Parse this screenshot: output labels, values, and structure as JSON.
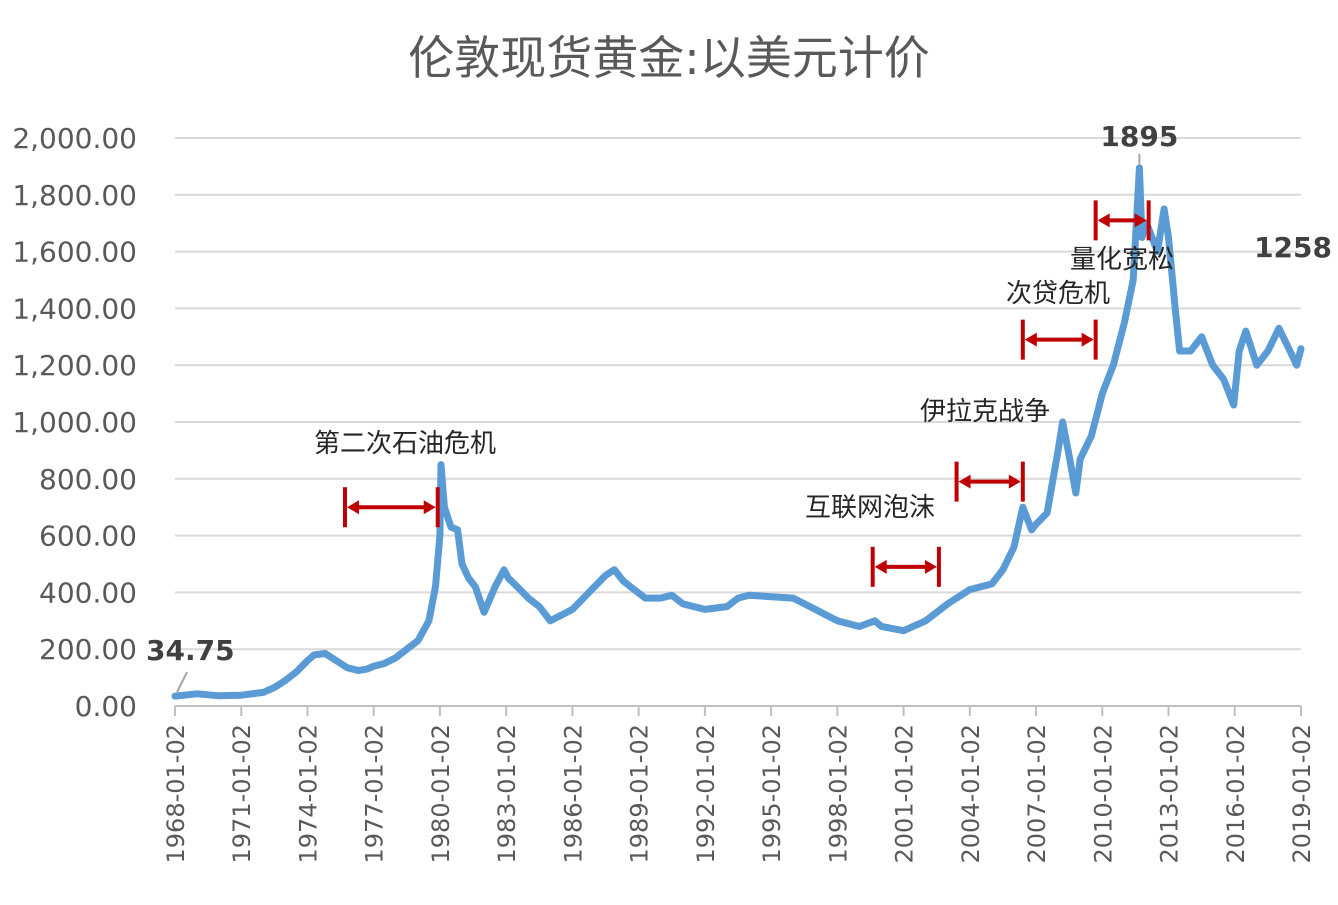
{
  "chart_data": {
    "type": "line",
    "title": "伦敦现货黄金:以美元计价",
    "xlabel": "",
    "ylabel": "",
    "ylim": [
      0,
      2000
    ],
    "grid": true,
    "legend": "none",
    "y_ticks": [
      "0.00",
      "200.00",
      "400.00",
      "600.00",
      "800.00",
      "1,000.00",
      "1,200.00",
      "1,400.00",
      "1,600.00",
      "1,800.00",
      "2,000.00"
    ],
    "x_ticks": [
      "1968-01-02",
      "1971-01-02",
      "1974-01-02",
      "1977-01-02",
      "1980-01-02",
      "1983-01-02",
      "1986-01-02",
      "1989-01-02",
      "1992-01-02",
      "1995-01-02",
      "1998-01-02",
      "2001-01-02",
      "2004-01-02",
      "2007-01-02",
      "2010-01-02",
      "2013-01-02",
      "2016-01-02",
      "2019-01-02"
    ],
    "line_color": "#5B9BD5",
    "arrow_color": "#C00000",
    "series": [
      {
        "x": [
          1968.0,
          1969.0,
          1970.0,
          1971.0,
          1972.0,
          1972.5,
          1973.0,
          1973.5,
          1974.0,
          1974.3,
          1974.8,
          1975.3,
          1975.8,
          1976.3,
          1976.7,
          1977.0,
          1977.5,
          1978.0,
          1978.5,
          1979.0,
          1979.5,
          1979.8,
          1980.0,
          1980.05,
          1980.2,
          1980.5,
          1980.8,
          1981.0,
          1981.3,
          1981.6,
          1982.0,
          1982.5,
          1982.9,
          1983.1,
          1983.5,
          1984.0,
          1984.5,
          1985.0,
          1985.5,
          1986.0,
          1986.5,
          1987.0,
          1987.5,
          1987.9,
          1988.3,
          1988.8,
          1989.3,
          1990.0,
          1990.5,
          1991.0,
          1992.0,
          1993.0,
          1993.5,
          1994.0,
          1995.0,
          1996.0,
          1997.0,
          1997.5,
          1998.0,
          1999.0,
          1999.7,
          2000.0,
          2001.0,
          2002.0,
          2003.0,
          2004.0,
          2005.0,
          2005.5,
          2006.0,
          2006.4,
          2006.8,
          2007.0,
          2007.5,
          2008.0,
          2008.2,
          2008.5,
          2008.8,
          2009.0,
          2009.5,
          2010.0,
          2010.5,
          2011.0,
          2011.4,
          2011.68,
          2011.8,
          2012.0,
          2012.5,
          2012.8,
          2013.0,
          2013.3,
          2013.5,
          2014.0,
          2014.5,
          2015.0,
          2015.5,
          2015.95,
          2016.2,
          2016.5,
          2017.0,
          2017.5,
          2018.0,
          2018.5,
          2018.8,
          2019.0
        ],
        "y": [
          34.75,
          43,
          36,
          38,
          48,
          65,
          90,
          120,
          160,
          180,
          185,
          160,
          135,
          125,
          130,
          140,
          150,
          170,
          200,
          230,
          300,
          420,
          600,
          850,
          700,
          630,
          620,
          500,
          450,
          420,
          330,
          420,
          480,
          450,
          420,
          380,
          350,
          300,
          320,
          340,
          380,
          420,
          460,
          480,
          440,
          410,
          380,
          380,
          390,
          360,
          340,
          350,
          380,
          390,
          385,
          380,
          340,
          320,
          300,
          280,
          300,
          280,
          265,
          300,
          360,
          410,
          430,
          480,
          560,
          700,
          620,
          640,
          680,
          900,
          1000,
          880,
          750,
          870,
          950,
          1100,
          1200,
          1350,
          1500,
          1895,
          1650,
          1700,
          1600,
          1750,
          1650,
          1400,
          1250,
          1250,
          1300,
          1200,
          1150,
          1060,
          1250,
          1320,
          1200,
          1250,
          1330,
          1250,
          1200,
          1258
        ]
      }
    ],
    "annotations": {
      "start_value": "34.75",
      "peak_value": "1895",
      "end_value": "1258",
      "events": [
        {
          "label": "第二次石油危机",
          "from": 1975.7,
          "to": 1979.9,
          "level": 700
        },
        {
          "label": "互联网泡沫",
          "from": 1999.6,
          "to": 2002.6,
          "level": 490
        },
        {
          "label": "伊拉克战争",
          "from": 2003.4,
          "to": 2006.4,
          "level": 790
        },
        {
          "label": "次贷危机",
          "from": 2006.4,
          "to": 2009.7,
          "level": 1290
        },
        {
          "label": "量化宽松",
          "from": 2009.7,
          "to": 2012.1,
          "level": 1710
        }
      ]
    }
  }
}
